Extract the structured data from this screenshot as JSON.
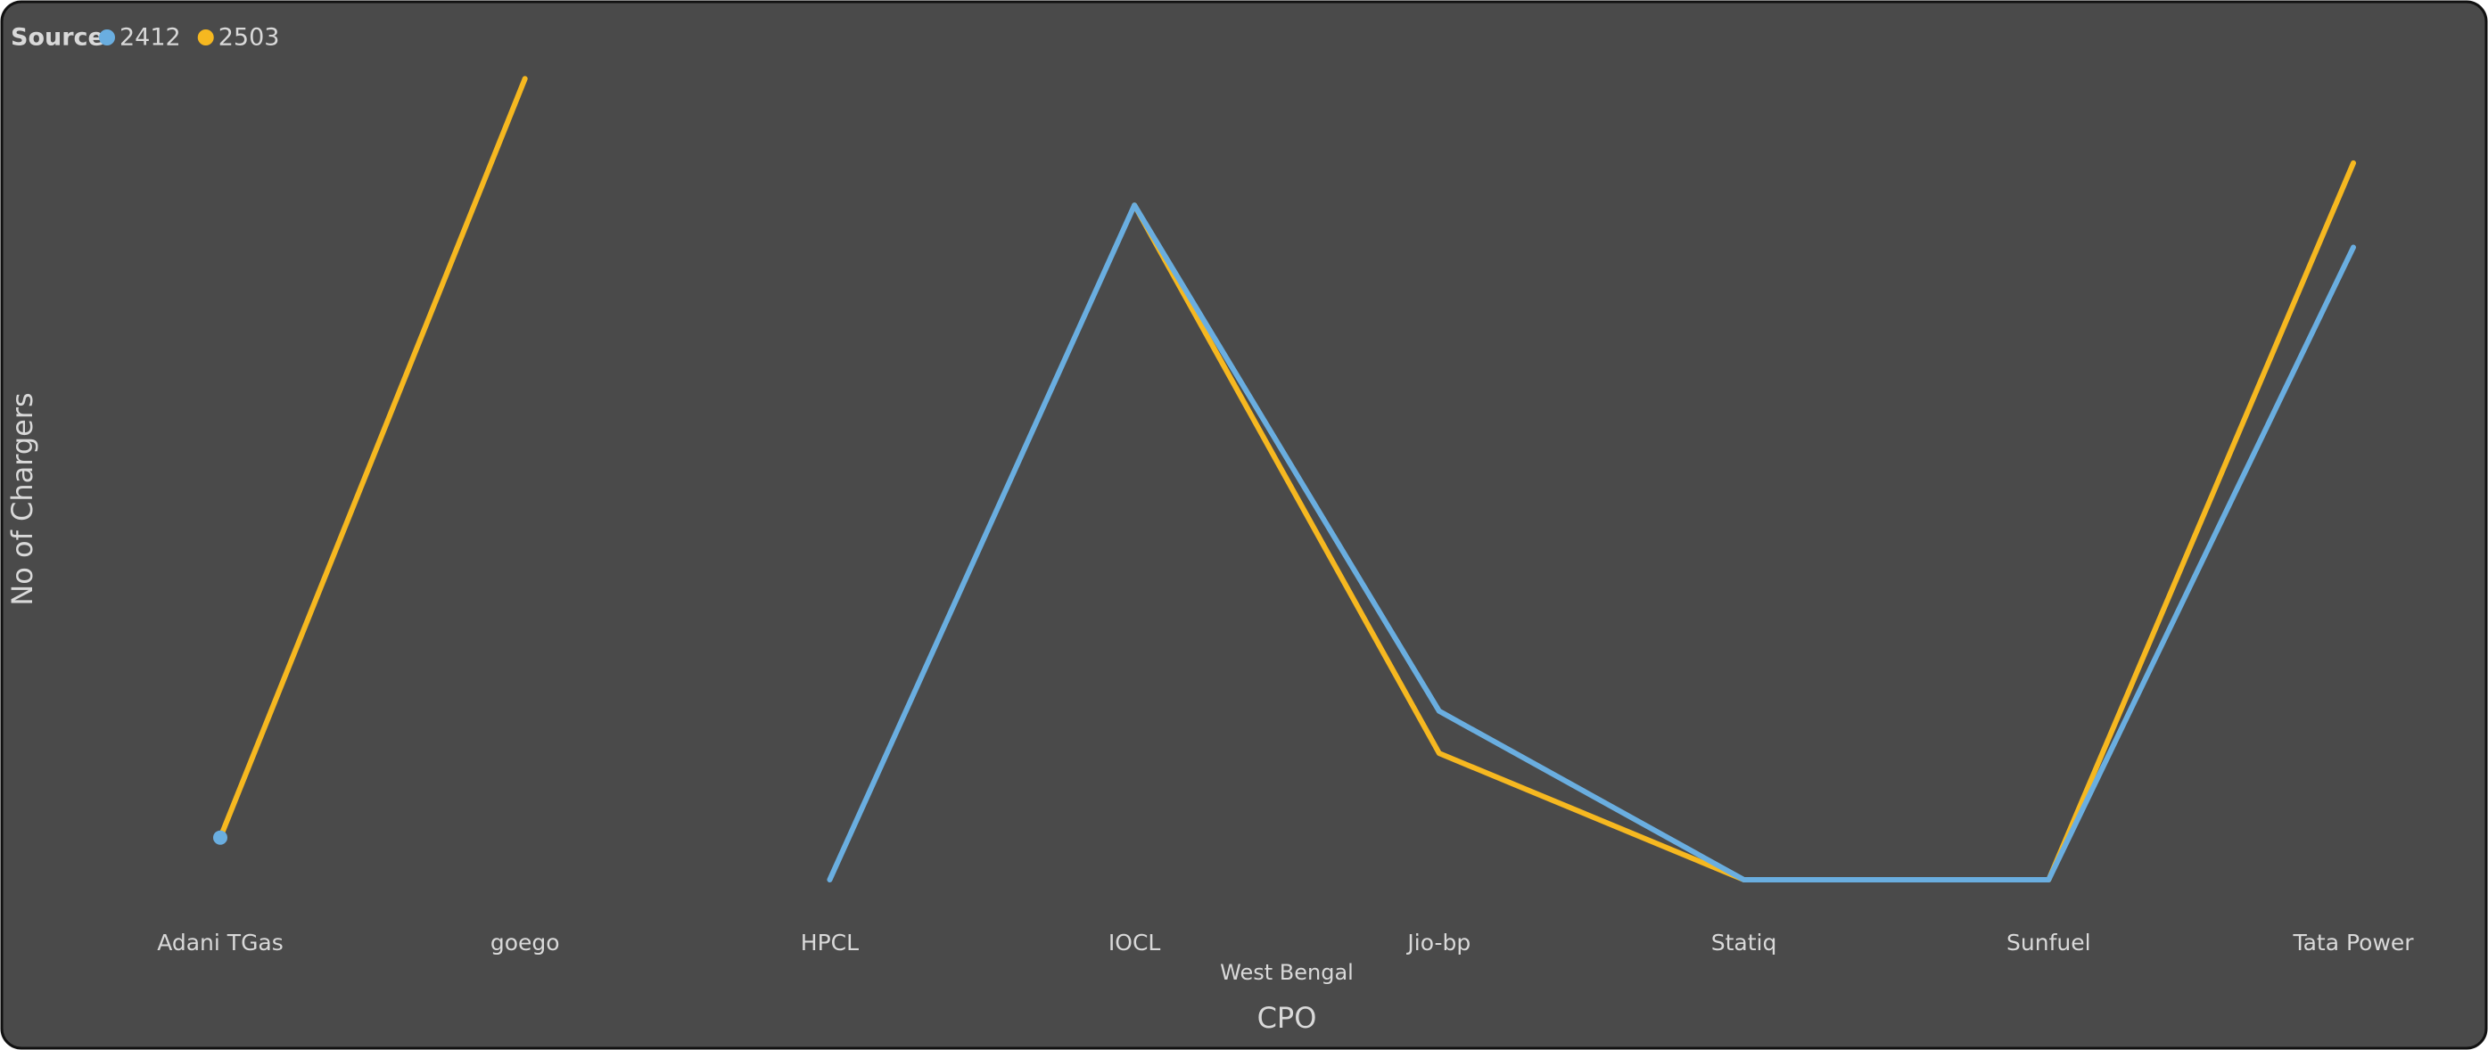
{
  "chart_data": {
    "type": "line",
    "legend_title": "Source",
    "x_label": "CPO",
    "x_sublabel": "West Bengal",
    "y_label": "No of Chargers",
    "categories": [
      "Adani TGas",
      "goego",
      "HPCL",
      "IOCL",
      "Jio-bp",
      "Statiq",
      "Sunfuel",
      "Tata Power"
    ],
    "series": [
      {
        "name": "2412",
        "color": "#6aaee0",
        "values": [
          1,
          null,
          0,
          16,
          4,
          0,
          0,
          15
        ]
      },
      {
        "name": "2503",
        "color": "#f6b820",
        "values": [
          1,
          19,
          null,
          16,
          3,
          0,
          0,
          17
        ]
      }
    ],
    "ylim": [
      0,
      20
    ],
    "legend": "top-left",
    "grid": false
  }
}
